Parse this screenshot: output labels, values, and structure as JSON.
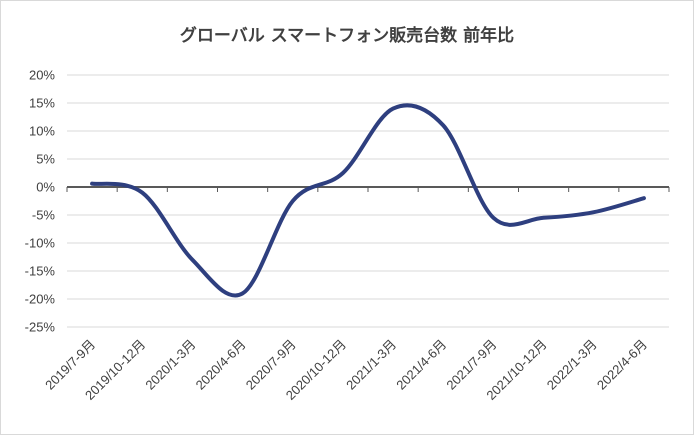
{
  "chart_data": {
    "type": "line",
    "title": "グローバル スマートフォン販売台数 前年比",
    "xlabel": "",
    "ylabel": "",
    "categories": [
      "2019/7-9月",
      "2019/10-12月",
      "2020/1-3月",
      "2020/4-6月",
      "2020/7-9月",
      "2020/10-12月",
      "2021/1-3月",
      "2021/4-6月",
      "2021/7-9月",
      "2021/10-12月",
      "2022/1-3月",
      "2022/4-6月"
    ],
    "series": [
      {
        "values": [
          0.6,
          -1.0,
          -13.0,
          -19.0,
          -2.5,
          2.5,
          14.0,
          11.0,
          -5.5,
          -5.5,
          -4.5,
          -2.0
        ]
      }
    ],
    "ylim": [
      -25,
      20
    ],
    "ytick_step": 5,
    "ytick_labels": [
      "20%",
      "15%",
      "10%",
      "5%",
      "0%",
      "-5%",
      "-10%",
      "-15%",
      "-20%",
      "-25%"
    ],
    "grid": true,
    "legend": "none",
    "colors": {
      "series": "#2e3f7f",
      "zero_line": "#595959",
      "grid": "#d9d9d9",
      "text": "#404040"
    }
  }
}
